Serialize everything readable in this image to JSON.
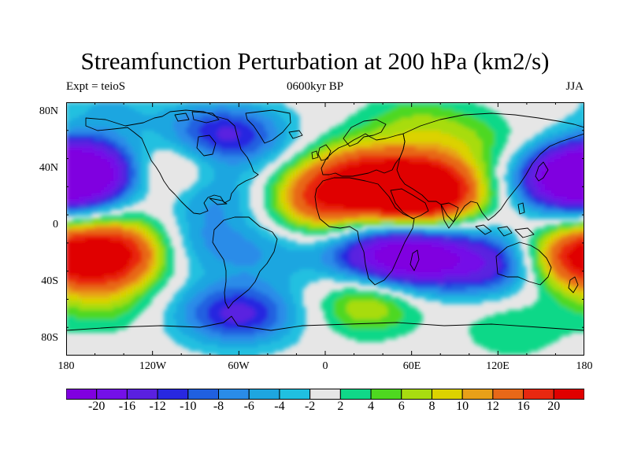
{
  "title": "Streamfunction Perturbation at 200 hPa (km2/s)",
  "subtitle_left": "Expt = teioS",
  "subtitle_center": "0600kyr BP",
  "subtitle_right": "JJA",
  "axes": {
    "x_tick_labels": [
      "180",
      "120W",
      "60W",
      "0",
      "60E",
      "120E",
      "180"
    ],
    "y_tick_labels": [
      "80N",
      "40N",
      "0",
      "40S",
      "80S"
    ],
    "lon_range": [
      -180,
      180
    ],
    "lat_range": [
      -90,
      90
    ]
  },
  "colorbar": {
    "labels": [
      "-20",
      "-16",
      "-12",
      "-10",
      "-8",
      "-6",
      "-4",
      "-2",
      "2",
      "4",
      "6",
      "8",
      "10",
      "12",
      "16",
      "20"
    ],
    "colors": [
      "#8000e0",
      "#7410e8",
      "#5a20e0",
      "#2828e0",
      "#2060e0",
      "#2a8ce8",
      "#1ea6e0",
      "#20c0e0",
      "#e6e6e6",
      "#10d888",
      "#4ed820",
      "#a8dc10",
      "#dcd200",
      "#e8a018",
      "#e86818",
      "#e82810",
      "#e00000"
    ]
  },
  "field_features": [
    {
      "lon": 50,
      "lat": 28,
      "value": 21
    },
    {
      "lon": 75,
      "lat": 26,
      "value": 20
    },
    {
      "lon": 0,
      "lat": 25,
      "value": 14
    },
    {
      "lon": 20,
      "lat": 45,
      "value": 8
    },
    {
      "lon": 60,
      "lat": 75,
      "value": 5
    },
    {
      "lon": -5,
      "lat": 8,
      "value": 5
    },
    {
      "lon": 100,
      "lat": 62,
      "value": 5
    },
    {
      "lon": -150,
      "lat": -20,
      "value": 18
    },
    {
      "lon": 172,
      "lat": -20,
      "value": 16
    },
    {
      "lon": -130,
      "lat": -8,
      "value": 5
    },
    {
      "lon": -108,
      "lat": 40,
      "value": 7
    },
    {
      "lon": 30,
      "lat": -52,
      "value": 9
    },
    {
      "lon": -155,
      "lat": -52,
      "value": 5
    },
    {
      "lon": 130,
      "lat": -70,
      "value": 4
    },
    {
      "lon": -165,
      "lat": 40,
      "value": -22
    },
    {
      "lon": 168,
      "lat": 35,
      "value": -20
    },
    {
      "lon": -80,
      "lat": 68,
      "value": -9
    },
    {
      "lon": -50,
      "lat": 65,
      "value": -6
    },
    {
      "lon": -80,
      "lat": 25,
      "value": -7
    },
    {
      "lon": 65,
      "lat": -20,
      "value": -20
    },
    {
      "lon": 30,
      "lat": -18,
      "value": -12
    },
    {
      "lon": 115,
      "lat": -25,
      "value": -13
    },
    {
      "lon": -90,
      "lat": -10,
      "value": -6
    },
    {
      "lon": -40,
      "lat": -15,
      "value": -5
    },
    {
      "lon": -50,
      "lat": -60,
      "value": -9
    },
    {
      "lon": -80,
      "lat": -60,
      "value": -6
    },
    {
      "lon": -150,
      "lat": 85,
      "value": -4
    }
  ]
}
